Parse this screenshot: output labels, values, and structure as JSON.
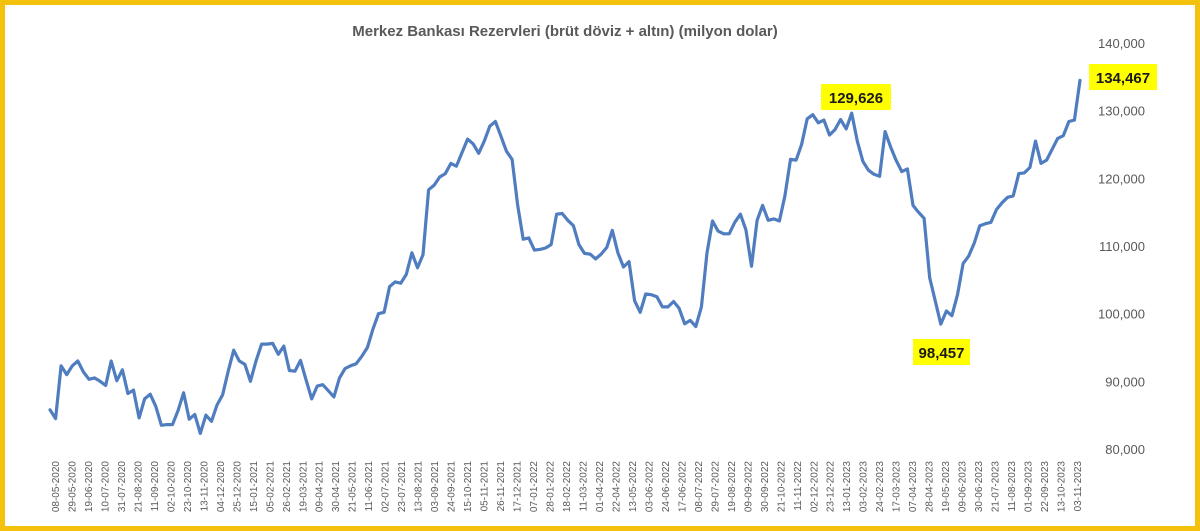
{
  "chart_data": {
    "type": "line",
    "title": "Merkez Bankası Rezervleri (brüt döviz + altın) (milyon dolar)",
    "xlabel": "",
    "ylabel": "",
    "ylim": [
      80000,
      140000
    ],
    "y_ticks": [
      "80,000",
      "90,000",
      "100,000",
      "110,000",
      "120,000",
      "130,000",
      "140,000"
    ],
    "y_tick_values": [
      80000,
      90000,
      100000,
      110000,
      120000,
      130000,
      140000
    ],
    "y_axis_side": "right",
    "grid": false,
    "legend": "none",
    "line_color": "#4F7DBF",
    "highlight_color": "#FFFF00",
    "x_tick_labels": [
      "08-05-2020",
      "29-05-2020",
      "19-06-2020",
      "10-07-2020",
      "31-07-2020",
      "21-08-2020",
      "11-09-2020",
      "02-10-2020",
      "23-10-2020",
      "13-11-2020",
      "04-12-2020",
      "25-12-2020",
      "15-01-2021",
      "05-02-2021",
      "26-02-2021",
      "19-03-2021",
      "09-04-2021",
      "30-04-2021",
      "21-05-2021",
      "11-06-2021",
      "02-07-2021",
      "23-07-2021",
      "13-08-2021",
      "03-09-2021",
      "24-09-2021",
      "15-10-2021",
      "05-11-2021",
      "26-11-2021",
      "17-12-2021",
      "07-01-2022",
      "28-01-2022",
      "18-02-2022",
      "11-03-2022",
      "01-04-2022",
      "22-04-2022",
      "13-05-2022",
      "03-06-2022",
      "24-06-2022",
      "17-06-2022",
      "08-07-2022",
      "29-07-2022",
      "19-08-2022",
      "09-09-2022",
      "30-09-2022",
      "21-10-2022",
      "11-11-2022",
      "02-12-2022",
      "23-12-2022",
      "13-01-2023",
      "03-02-2023",
      "24-02-2023",
      "17-03-2023",
      "07-04-2023",
      "28-04-2023",
      "19-05-2023",
      "09-06-2023",
      "30-06-2023",
      "21-07-2023",
      "11-08-2023",
      "01-09-2023",
      "22-09-2023",
      "13-10-2023",
      "03-11-2023"
    ],
    "series": [
      {
        "values": [
          85800,
          84500,
          92300,
          91000,
          92300,
          93000,
          91400,
          90300,
          90500,
          90000,
          89400,
          93000,
          90100,
          91700,
          88200,
          88700,
          84600,
          87400,
          88100,
          86300,
          83500,
          83600,
          83600,
          85700,
          88300,
          84400,
          85100,
          82300,
          85000,
          84100,
          86500,
          88000,
          91500,
          94600,
          93000,
          92500,
          90000,
          93000,
          95500,
          95500,
          95600,
          94000,
          95200,
          91600,
          91500,
          93100,
          90200,
          87400,
          89300,
          89500,
          88600,
          87700,
          90500,
          91900,
          92300,
          92600,
          93700,
          95000,
          97700,
          100000,
          100200,
          104000,
          104700,
          104500,
          105800,
          109000,
          106800,
          108700,
          118300,
          119000,
          120200,
          120700,
          122200,
          121800,
          123800,
          125800,
          125100,
          123700,
          125500,
          127700,
          128400,
          126200,
          124000,
          122800,
          116000,
          111000,
          111200,
          109400,
          109500,
          109700,
          110200,
          114700,
          114800,
          113800,
          113000,
          110200,
          108900,
          108800,
          108100,
          108800,
          109800,
          112300,
          109000,
          106900,
          107700,
          101900,
          100200,
          102900,
          102800,
          102500,
          101000,
          101000,
          101800,
          100800,
          98500,
          99000,
          98100,
          101000,
          109000,
          113700,
          112200,
          111800,
          111800,
          113500,
          114700,
          112400,
          107000,
          113800,
          116000,
          113800,
          114000,
          113700,
          117400,
          122800,
          122700,
          125000,
          128800,
          129400,
          128200,
          128600,
          126400,
          127200,
          128700,
          127300,
          129626,
          125500,
          122500,
          121200,
          120600,
          120300,
          126900,
          124600,
          122600,
          121000,
          121400,
          116000,
          115000,
          114100,
          105300,
          101900,
          98457,
          100400,
          99700,
          102800,
          107400,
          108500,
          110400,
          113000,
          113300,
          113500,
          115400,
          116400,
          117200,
          117400,
          120700,
          120800,
          121600,
          125500,
          122200,
          122700,
          124300,
          125900,
          126300,
          128400,
          128600,
          134467
        ]
      }
    ],
    "annotations": [
      {
        "label": "129,626",
        "value": 129626
      },
      {
        "label": "98,457",
        "value": 98457
      },
      {
        "label": "134,467",
        "value": 134467
      }
    ]
  }
}
